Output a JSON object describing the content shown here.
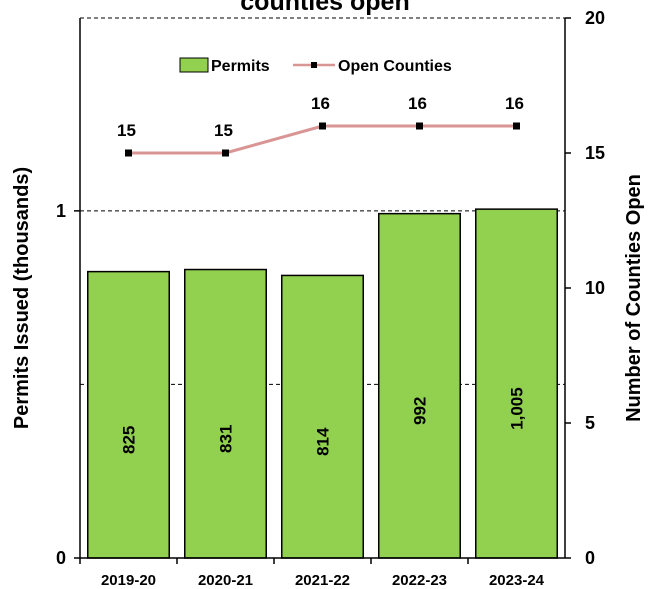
{
  "chart_data": {
    "type": "bar",
    "title": "counties open",
    "categories": [
      "2019-20",
      "2020-21",
      "2021-22",
      "2022-23",
      "2023-24"
    ],
    "series": [
      {
        "name": "Permits",
        "axis": "left",
        "type": "bar",
        "values": [
          0.825,
          0.831,
          0.814,
          0.992,
          1.005
        ],
        "labels": [
          "825",
          "831",
          "814",
          "992",
          "1,005"
        ],
        "color": "#92d050"
      },
      {
        "name": "Open Counties",
        "axis": "right",
        "type": "line",
        "values": [
          15,
          15,
          16,
          16,
          16
        ],
        "labels": [
          "15",
          "15",
          "16",
          "16",
          "16"
        ],
        "color": "#d99594"
      }
    ],
    "y_left": {
      "label": "Permits Issued (thousands)",
      "lim": [
        0,
        1.5556
      ],
      "ticks": [
        {
          "value": 0,
          "label": "0"
        },
        {
          "value": 1,
          "label": "1"
        }
      ],
      "gridlines": [
        0.5,
        1,
        1.5556
      ]
    },
    "y_right": {
      "label": "Number of Counties Open",
      "lim": [
        0,
        20
      ],
      "ticks": [
        {
          "value": 0,
          "label": "0"
        },
        {
          "value": 5,
          "label": "5"
        },
        {
          "value": 10,
          "label": "10"
        },
        {
          "value": 15,
          "label": "15"
        },
        {
          "value": 20,
          "label": "20"
        }
      ]
    },
    "grid": "dashed horizontal",
    "legend_position": "top-center"
  }
}
